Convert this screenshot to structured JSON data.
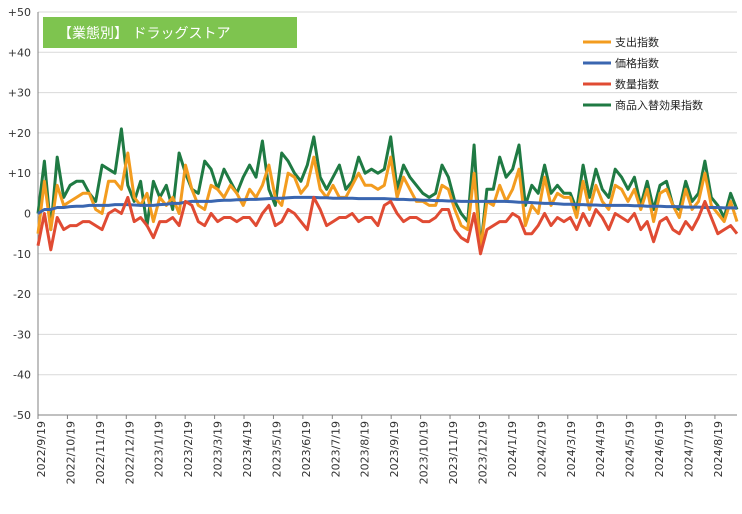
{
  "chart_data": {
    "type": "line",
    "title": "【業態別】 ドラッグストア",
    "ylim": [
      -50,
      50
    ],
    "y_ticks": [
      50,
      40,
      30,
      20,
      10,
      0,
      -10,
      -20,
      -30,
      -40,
      -50
    ],
    "y_tick_labels": [
      "+50",
      "+40",
      "+30",
      "+20",
      "+10",
      "0",
      "-10",
      "-20",
      "-30",
      "-40",
      "-50"
    ],
    "x_tick_labels": [
      "2022/9/19",
      "2022/10/19",
      "2022/11/19",
      "2022/12/19",
      "2023/1/19",
      "2023/2/19",
      "2023/3/19",
      "2023/4/19",
      "2023/5/19",
      "2023/6/19",
      "2023/7/19",
      "2023/8/19",
      "2023/9/19",
      "2023/10/19",
      "2023/11/19",
      "2023/12/19",
      "2024/1/19",
      "2024/2/19",
      "2024/3/19",
      "2024/4/19",
      "2024/5/19",
      "2024/6/19",
      "2024/7/19",
      "2024/8/19"
    ],
    "grid": true,
    "legend_position": "top-right",
    "colors": {
      "title_box_bg": "#7ec44f",
      "title_text": "#ffffff",
      "grid": "#d9d9d9",
      "axis": "#808080"
    },
    "series": [
      {
        "name": "支出指数",
        "color": "#f39c1f",
        "values": [
          -5,
          8,
          -4,
          7,
          2,
          3,
          4,
          5,
          5,
          1,
          0,
          8,
          8,
          6,
          15,
          4,
          2,
          5,
          -2,
          4,
          2,
          4,
          0,
          12,
          6,
          2,
          1,
          7,
          6,
          4,
          7,
          5,
          2,
          6,
          4,
          7,
          12,
          4,
          2,
          10,
          9,
          5,
          7,
          14,
          6,
          4,
          7,
          4,
          4,
          7,
          10,
          7,
          7,
          6,
          7,
          14,
          4,
          9,
          6,
          3,
          3,
          2,
          2,
          7,
          6,
          1,
          -3,
          -4,
          10,
          -9,
          3,
          2,
          7,
          3,
          6,
          11,
          -3,
          2,
          0,
          9,
          2,
          5,
          4,
          4,
          -1,
          8,
          1,
          7,
          3,
          1,
          7,
          6,
          3,
          6,
          1,
          6,
          -2,
          5,
          6,
          2,
          -1,
          6,
          1,
          3,
          10,
          2,
          0,
          -2,
          3,
          -2
        ]
      },
      {
        "name": "価格指数",
        "color": "#3a66b0",
        "values": [
          0,
          1,
          1,
          1.5,
          1.5,
          1.7,
          1.8,
          1.8,
          2,
          2,
          2,
          2,
          2.2,
          2.2,
          2.2,
          2.1,
          2,
          2,
          2,
          2.2,
          2.3,
          2.5,
          2.5,
          2.8,
          3,
          3,
          3,
          3,
          3.2,
          3.3,
          3.3,
          3.4,
          3.4,
          3.5,
          3.5,
          3.6,
          3.7,
          3.8,
          3.8,
          3.9,
          4,
          4,
          4,
          4,
          3.9,
          3.9,
          3.8,
          3.8,
          3.8,
          3.8,
          3.7,
          3.7,
          3.7,
          3.7,
          3.7,
          3.6,
          3.5,
          3.5,
          3.4,
          3.4,
          3.3,
          3.3,
          3.2,
          3.2,
          3.1,
          3.1,
          3,
          3,
          3,
          3,
          3,
          3,
          3,
          3,
          2.9,
          2.8,
          2.8,
          2.7,
          2.6,
          2.5,
          2.5,
          2.4,
          2.3,
          2.3,
          2.2,
          2.2,
          2.1,
          2.1,
          2,
          2,
          2,
          2,
          2,
          1.9,
          1.9,
          1.8,
          1.8,
          1.8,
          1.7,
          1.7,
          1.7,
          1.6,
          1.6,
          1.6,
          1.5,
          1.5,
          1.5,
          1.4,
          1.4,
          1.4
        ]
      },
      {
        "name": "数量指数",
        "color": "#e04b33",
        "values": [
          -8,
          0,
          -9,
          -1,
          -4,
          -3,
          -3,
          -2,
          -2,
          -3,
          -4,
          0,
          1,
          0,
          4,
          -2,
          -1,
          -3,
          -6,
          -2,
          -2,
          -1,
          -3,
          3,
          2,
          -2,
          -3,
          0,
          -2,
          -1,
          -1,
          -2,
          -1,
          -1,
          -3,
          0,
          2,
          -3,
          -2,
          1,
          0,
          -2,
          -4,
          4,
          1,
          -3,
          -2,
          -1,
          -1,
          0,
          -2,
          -1,
          -1,
          -3,
          2,
          3,
          0,
          -2,
          -1,
          -1,
          -2,
          -2,
          -1,
          1,
          1,
          -4,
          -6,
          -7,
          0,
          -10,
          -4,
          -3,
          -2,
          -2,
          0,
          -1,
          -5,
          -5,
          -3,
          0,
          -3,
          -1,
          -2,
          -1,
          -4,
          0,
          -3,
          1,
          -1,
          -4,
          0,
          -1,
          -2,
          0,
          -4,
          -2,
          -7,
          -2,
          -1,
          -4,
          -5,
          -2,
          -4,
          -1,
          3,
          -1,
          -5,
          -4,
          -3,
          -5
        ]
      },
      {
        "name": "商品入替効果指数",
        "color": "#1f7a43",
        "values": [
          0,
          13,
          -4,
          14,
          4,
          7,
          8,
          8,
          5,
          3,
          12,
          11,
          10,
          21,
          7,
          3,
          8,
          -3,
          8,
          4,
          7,
          1,
          15,
          10,
          6,
          5,
          13,
          11,
          6,
          11,
          8,
          5,
          9,
          12,
          9,
          18,
          6,
          2,
          15,
          13,
          10,
          8,
          12,
          19,
          9,
          6,
          9,
          12,
          6,
          8,
          14,
          10,
          11,
          10,
          11,
          19,
          6,
          12,
          9,
          7,
          5,
          4,
          5,
          12,
          9,
          3,
          0,
          -2,
          17,
          -9,
          6,
          6,
          14,
          9,
          11,
          17,
          2,
          7,
          5,
          12,
          5,
          7,
          5,
          5,
          1,
          12,
          4,
          11,
          6,
          4,
          11,
          9,
          6,
          9,
          2,
          8,
          1,
          7,
          8,
          2,
          1,
          8,
          3,
          5,
          13,
          4,
          2,
          -1,
          5,
          1
        ]
      }
    ]
  }
}
